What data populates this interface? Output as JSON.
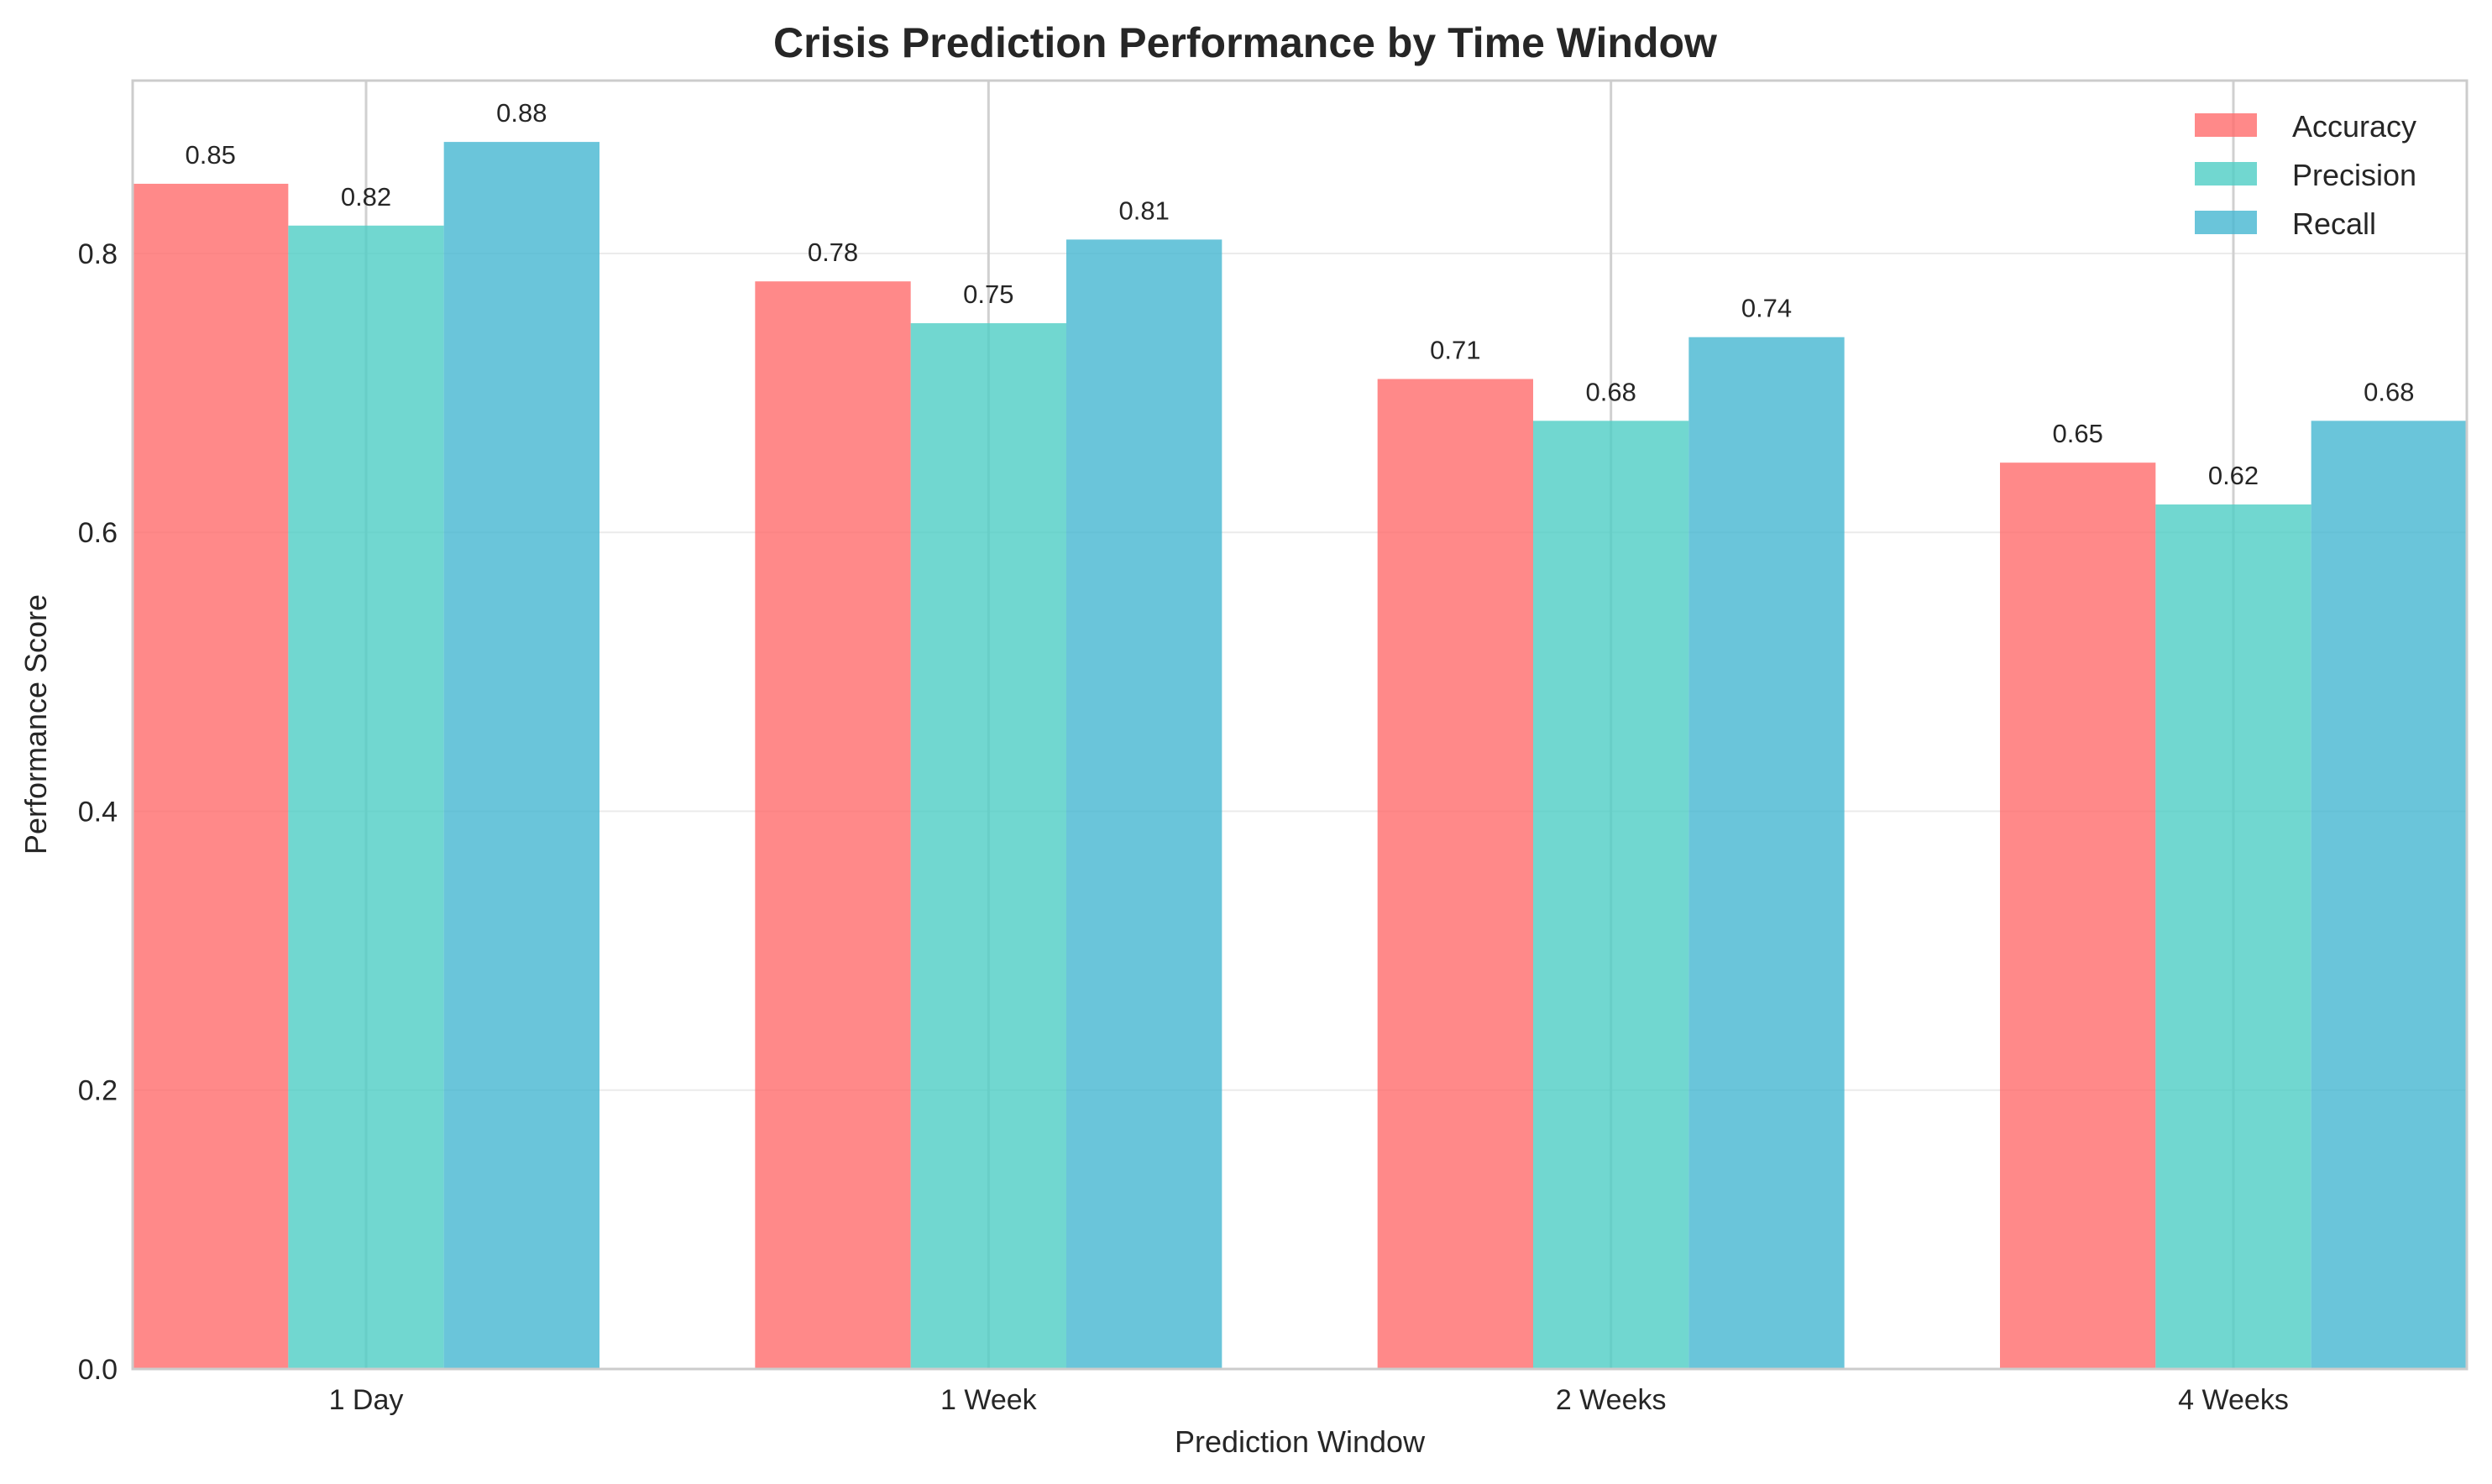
{
  "chart_data": {
    "type": "bar",
    "title": "Crisis Prediction Performance by Time Window",
    "xlabel": "Prediction Window",
    "ylabel": "Performance Score",
    "categories": [
      "1 Day",
      "1 Week",
      "2 Weeks",
      "4 Weeks"
    ],
    "series": [
      {
        "name": "Accuracy",
        "values": [
          0.85,
          0.78,
          0.71,
          0.65
        ],
        "color": "#FF6B6B"
      },
      {
        "name": "Precision",
        "values": [
          0.82,
          0.75,
          0.68,
          0.62
        ],
        "color": "#4ECDC4"
      },
      {
        "name": "Recall",
        "values": [
          0.88,
          0.81,
          0.74,
          0.68
        ],
        "color": "#45B7D1"
      }
    ],
    "ylim": [
      0,
      0.924
    ],
    "yticks": [
      "0.0",
      "0.2",
      "0.4",
      "0.6",
      "0.8"
    ],
    "grid": true,
    "legend_position": "top-right"
  }
}
